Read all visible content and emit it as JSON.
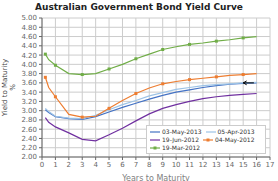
{
  "chart_data": {
    "type": "line",
    "title": "Australian Government Bond Yield Curve",
    "x_label": "Years to Maturity",
    "y_label": "Yield to Maturity\n%",
    "x": [
      0.25,
      0.5,
      1,
      2,
      3,
      4,
      5,
      6,
      7,
      8,
      9,
      10,
      11,
      12,
      13,
      14,
      15,
      16
    ],
    "series": [
      {
        "name": "03-May-2013",
        "color": "#4472C4",
        "values": [
          3.02,
          2.96,
          2.87,
          2.83,
          2.81,
          2.87,
          2.97,
          3.07,
          3.16,
          3.25,
          3.33,
          3.4,
          3.45,
          3.5,
          3.54,
          3.57,
          3.59,
          3.6
        ]
      },
      {
        "name": "05-Apr-2013",
        "color": "#9DC3E6",
        "values": [
          3.05,
          2.98,
          2.88,
          2.84,
          2.83,
          2.9,
          3.02,
          3.13,
          3.22,
          3.32,
          3.39,
          3.46,
          3.5,
          3.54,
          3.56,
          3.58,
          3.6,
          3.61
        ]
      },
      {
        "name": "19-Jun-2012",
        "color": "#7030A0",
        "values": [
          2.85,
          2.75,
          2.65,
          2.52,
          2.38,
          2.35,
          2.48,
          2.62,
          2.78,
          2.93,
          3.05,
          3.13,
          3.2,
          3.26,
          3.3,
          3.33,
          3.35,
          3.37
        ]
      },
      {
        "name": "04-May-2012",
        "color": "#ED7D31",
        "marker": "square",
        "values": [
          3.72,
          3.5,
          3.3,
          2.92,
          2.86,
          2.88,
          3.05,
          3.22,
          3.37,
          3.49,
          3.58,
          3.63,
          3.67,
          3.7,
          3.73,
          3.76,
          3.78,
          3.8
        ]
      },
      {
        "name": "19-Mar-2012",
        "color": "#70AD47",
        "marker": "square",
        "values": [
          4.22,
          4.1,
          3.98,
          3.8,
          3.78,
          3.8,
          3.9,
          4.0,
          4.12,
          4.22,
          4.32,
          4.38,
          4.43,
          4.46,
          4.5,
          4.53,
          4.57,
          4.6
        ]
      }
    ],
    "xlim": [
      0,
      17
    ],
    "xticks": [
      0,
      1,
      2,
      3,
      4,
      5,
      6,
      7,
      8,
      9,
      10,
      11,
      12,
      13,
      14,
      15,
      16,
      17
    ],
    "ylim": [
      2.0,
      5.0
    ],
    "yticks": [
      {
        "value": 2.0,
        "label": "2.00"
      },
      {
        "value": 2.2,
        "label": "2.20"
      },
      {
        "value": 2.4,
        "label": "2.40"
      },
      {
        "value": 2.6,
        "label": "2.60"
      },
      {
        "value": 2.8,
        "label": "2.80"
      },
      {
        "value": 3.0,
        "label": "3.00"
      },
      {
        "value": 3.2,
        "label": "3.20"
      },
      {
        "value": 3.4,
        "label": "3.40"
      },
      {
        "value": 3.6,
        "label": "3.60"
      },
      {
        "value": 3.8,
        "label": "3.80"
      },
      {
        "value": 4.0,
        "label": "4.00"
      },
      {
        "value": 4.2,
        "label": "4.20"
      },
      {
        "value": 4.4,
        "label": "4.40"
      },
      {
        "value": 4.6,
        "label": "4.60"
      },
      {
        "value": 4.8,
        "label": "4.80"
      },
      {
        "value": 5.0,
        "label": "5.00"
      }
    ],
    "grid": true,
    "legend": "lower right",
    "annotations": [
      {
        "type": "arrow",
        "x_from": 15.8,
        "x_to": 15.0,
        "y": 3.6
      }
    ]
  }
}
